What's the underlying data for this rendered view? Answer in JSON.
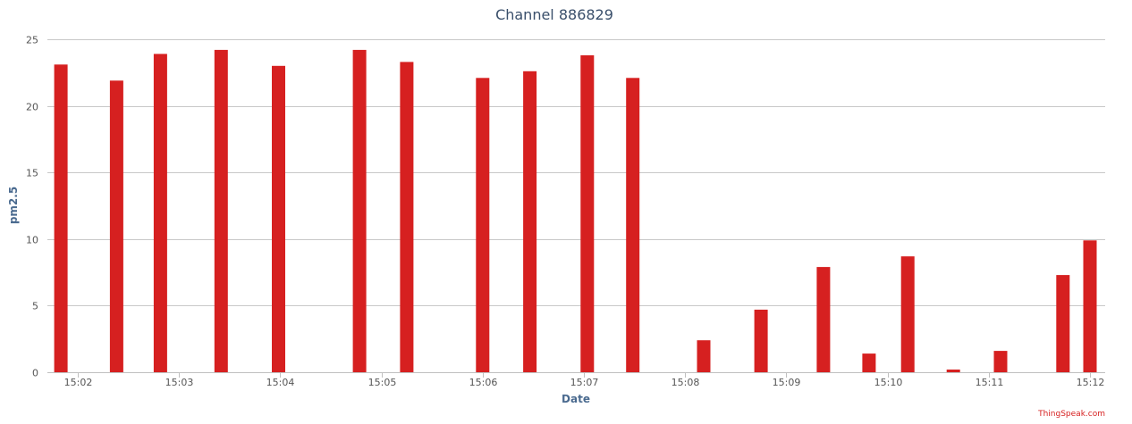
{
  "chart_data": {
    "type": "bar",
    "title": "Channel 886829",
    "xlabel": "Date",
    "ylabel": "pm2.5",
    "ylim": [
      0,
      25
    ],
    "yticks": [
      0,
      5,
      10,
      15,
      20,
      25
    ],
    "xlim": [
      "15:01:42",
      "15:12:09"
    ],
    "xticks": [
      "15:02",
      "15:03",
      "15:04",
      "15:05",
      "15:06",
      "15:07",
      "15:08",
      "15:09",
      "15:10",
      "15:11",
      "15:12"
    ],
    "grid": true,
    "legend": "none",
    "bar_color": "#d62020",
    "series": [
      {
        "points": [
          {
            "x": "15:01:50",
            "y": 23.1
          },
          {
            "x": "15:02:23",
            "y": 21.9
          },
          {
            "x": "15:02:49",
            "y": 23.9
          },
          {
            "x": "15:03:25",
            "y": 24.2
          },
          {
            "x": "15:03:59",
            "y": 23.0
          },
          {
            "x": "15:04:47",
            "y": 24.2
          },
          {
            "x": "15:05:15",
            "y": 23.3
          },
          {
            "x": "15:06:00",
            "y": 22.1
          },
          {
            "x": "15:06:28",
            "y": 22.6
          },
          {
            "x": "15:07:02",
            "y": 23.8
          },
          {
            "x": "15:07:29",
            "y": 22.1
          },
          {
            "x": "15:08:11",
            "y": 2.4
          },
          {
            "x": "15:08:45",
            "y": 4.7
          },
          {
            "x": "15:09:22",
            "y": 7.9
          },
          {
            "x": "15:09:49",
            "y": 1.4
          },
          {
            "x": "15:10:12",
            "y": 8.7
          },
          {
            "x": "15:10:39",
            "y": 0.2
          },
          {
            "x": "15:11:07",
            "y": 1.6
          },
          {
            "x": "15:11:44",
            "y": 7.3
          },
          {
            "x": "15:12:00",
            "y": 9.9
          }
        ]
      }
    ]
  },
  "footer": {
    "credit": "ThingSpeak.com"
  }
}
